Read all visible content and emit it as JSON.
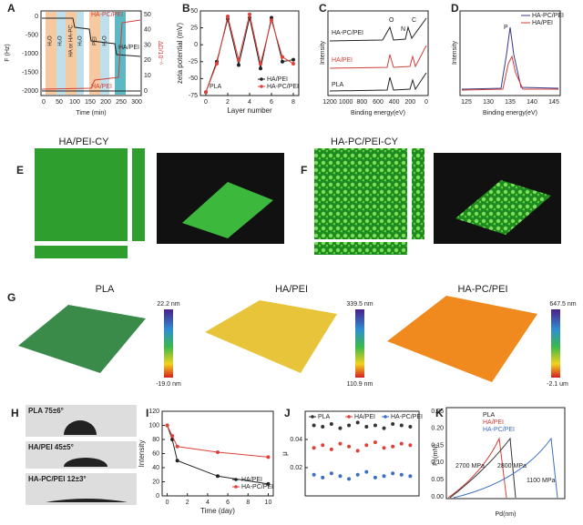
{
  "panels": {
    "A": {
      "label": "A",
      "ylabel": "F (Hz)",
      "y2label": "ΔD/10⁻⁶",
      "xlabel": "Time (min)",
      "curve1": "HA-PC/PEI",
      "curve2": "HA/PEI",
      "curve3": "HA/PEI",
      "yticks": [
        "0",
        "-500",
        "-1000",
        "-1500",
        "-2000"
      ],
      "y2ticks": [
        "50",
        "40",
        "30",
        "20",
        "10",
        "0"
      ],
      "xticks": [
        "0",
        "50",
        "100",
        "150",
        "200",
        "250",
        "300"
      ],
      "bands": [
        "H₂O",
        "H₂O",
        "HA or HA-PC",
        "H₂O",
        "PEI",
        "H₂O"
      ]
    },
    "C": {
      "label": "C",
      "ylabel": "Intensity",
      "xlabel": "Binding energy(eV)",
      "s1": "HA-PC/PEI",
      "s2": "HA/PEI",
      "s3": "PLA",
      "p1": "O",
      "p2": "N",
      "p3": "C",
      "xticks": [
        "1200",
        "1000",
        "800",
        "600",
        "400",
        "200",
        "0"
      ]
    },
    "D": {
      "label": "D",
      "ylabel": "Intensity",
      "xlabel": "Binding energy(eV)",
      "peak": "P",
      "l1": "HA-PC/PEI",
      "l2": "HA/PEI",
      "xticks": [
        "125",
        "130",
        "135",
        "140",
        "145"
      ]
    },
    "E": {
      "label": "E",
      "title": "HA/PEI-CY"
    },
    "F": {
      "label": "F",
      "title": "HA-PC/PEI-CY"
    },
    "G": {
      "label": "G",
      "t1": "PLA",
      "t2": "HA/PEI",
      "t3": "HA-PC/PEI",
      "s1top": "22.2 nm",
      "s1bot": "-19.0 nm",
      "s2top": "339.5 nm",
      "s2bot": "110.9 nm",
      "s3top": "647.5 nm",
      "s3bot": "-2.1 um"
    },
    "H": {
      "label": "H",
      "a": "PLA 75±6°",
      "b": "HA/PEI 45±5°",
      "c": "HA-PC/PEI 12±3°"
    },
    "K": {
      "label": "K",
      "ylabel": "Fn(mN)",
      "xlabel": "Pd(nm)",
      "l1": "PLA",
      "l2": "HA/PEI",
      "l3": "HA-PC/PEI",
      "m1": "2700 MPa",
      "m2": "2800 MPa",
      "m3": "1100 MPa",
      "yticks": [
        "0.25",
        "0.20",
        "0.15",
        "0.10",
        "0.05",
        "0.00"
      ]
    }
  },
  "chart_data": [
    {
      "type": "line",
      "label": "B",
      "ylabel": "zeta potential (mV)",
      "xlabel": "Layer number",
      "annotation": "PLA",
      "x": [
        0,
        1,
        2,
        3,
        4,
        5,
        6,
        7,
        8
      ],
      "xlim": [
        -0.5,
        8.5
      ],
      "xticks": [
        0,
        2,
        4,
        6,
        8
      ],
      "ylim": [
        -75,
        50
      ],
      "yticks": [
        -75,
        -50,
        -25,
        0,
        25,
        50
      ],
      "series": [
        {
          "name": "HA/PEI",
          "color": "#222222",
          "values": [
            -70,
            -25,
            38,
            -30,
            40,
            -35,
            40,
            -25,
            -22
          ]
        },
        {
          "name": "HA-PC/PEI",
          "color": "#e0403a",
          "values": [
            -70,
            -28,
            42,
            -22,
            45,
            -28,
            36,
            -18,
            -28
          ]
        }
      ]
    },
    {
      "type": "line",
      "label": "I",
      "ylabel": "Intensity",
      "xlabel": "Time (day)",
      "x": [
        0,
        0.5,
        1,
        5,
        10
      ],
      "xlim": [
        -0.5,
        10.5
      ],
      "xticks": [
        0,
        2,
        4,
        6,
        8,
        10
      ],
      "ylim": [
        0,
        120
      ],
      "yticks": [
        0,
        20,
        40,
        60,
        80,
        100,
        120
      ],
      "series": [
        {
          "name": "HA/PEI",
          "color": "#222222",
          "values": [
            100,
            80,
            50,
            28,
            17
          ]
        },
        {
          "name": "HA-PC/PEI",
          "color": "#e0403a",
          "values": [
            100,
            85,
            70,
            62,
            55
          ]
        }
      ]
    },
    {
      "type": "scatter",
      "label": "J",
      "ylabel": "μ",
      "x": [
        1,
        2,
        3,
        4,
        5,
        6,
        7,
        8,
        9,
        10,
        11,
        12
      ],
      "xlim": [
        0,
        13
      ],
      "ylim": [
        0,
        0.06
      ],
      "yticks": [
        0.02,
        0.04
      ],
      "series": [
        {
          "name": "PLA",
          "color": "#333333",
          "values": [
            0.05,
            0.049,
            0.051,
            0.048,
            0.05,
            0.052,
            0.049,
            0.05,
            0.048,
            0.051,
            0.05,
            0.049
          ]
        },
        {
          "name": "HA/PEI",
          "color": "#e0403a",
          "values": [
            0.034,
            0.036,
            0.033,
            0.037,
            0.035,
            0.032,
            0.036,
            0.038,
            0.034,
            0.035,
            0.037,
            0.036
          ]
        },
        {
          "name": "HA-PC/PEI",
          "color": "#3a6fc4",
          "values": [
            0.015,
            0.013,
            0.016,
            0.014,
            0.012,
            0.015,
            0.017,
            0.013,
            0.014,
            0.016,
            0.015,
            0.014
          ]
        }
      ]
    }
  ]
}
